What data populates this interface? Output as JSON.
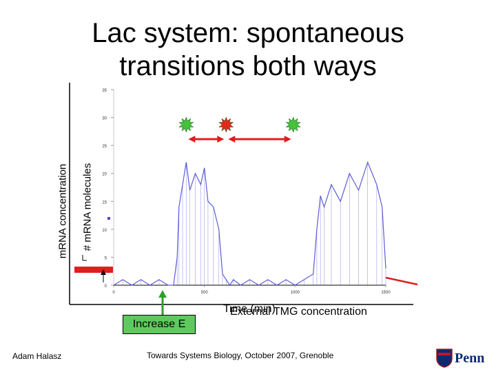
{
  "title": {
    "line1": "Lac system: spontaneous",
    "line2": "transitions both ways"
  },
  "labels": {
    "outer_ylabel": "mRNA concentration",
    "inner_ylabel": "# mRNA molecules",
    "xlabel_time": "Time (min)",
    "xlabel_external": "External TMG concentration",
    "increase_button": "Increase E"
  },
  "footer": {
    "author": "Adam Halasz",
    "conference": "Towards Systems Biology, October 2007, Grenoble",
    "logo_text": "Penn"
  },
  "colors": {
    "trace": "#5b5bd6",
    "arrow_red": "#e11d1d",
    "star_green": "#44c23a",
    "star_red": "#e02a1a",
    "button_green": "#5fc85f"
  },
  "chart_data": {
    "type": "line",
    "title": "",
    "xlabel": "Time (min)",
    "ylabel": "# mRNA molecules",
    "xlim": [
      0,
      1500
    ],
    "ylim": [
      0,
      35
    ],
    "xticks": [
      0,
      500,
      1000,
      1500
    ],
    "yticks": [
      0,
      5,
      10,
      15,
      20,
      25,
      30,
      35
    ],
    "grid": false,
    "series": [
      {
        "x": [
          0,
          50,
          100,
          150,
          200,
          250,
          300,
          330,
          350,
          360,
          380,
          400,
          420,
          450,
          480,
          500,
          520,
          550,
          580,
          600,
          620,
          640,
          660,
          700,
          750,
          800,
          850,
          900,
          950,
          1000,
          1050,
          1100,
          1120,
          1140,
          1160,
          1200,
          1250,
          1300,
          1350,
          1400,
          1450,
          1480,
          1500
        ],
        "values": [
          0,
          1,
          0,
          1,
          0,
          1,
          0,
          0,
          5,
          14,
          18,
          22,
          17,
          20,
          18,
          21,
          15,
          14,
          10,
          2,
          1,
          0,
          1,
          0,
          1,
          0,
          1,
          0,
          1,
          0,
          1,
          2,
          10,
          16,
          14,
          18,
          15,
          20,
          17,
          22,
          18,
          14,
          3
        ]
      }
    ],
    "annotations": [
      {
        "type": "star",
        "x": 400,
        "color": "green"
      },
      {
        "type": "star",
        "x": 620,
        "color": "red"
      },
      {
        "type": "star",
        "x": 990,
        "color": "green"
      },
      {
        "type": "double-arrow",
        "x_from": 400,
        "x_to": 620,
        "color": "red"
      },
      {
        "type": "double-arrow",
        "x_from": 620,
        "x_to": 990,
        "color": "red"
      }
    ]
  }
}
